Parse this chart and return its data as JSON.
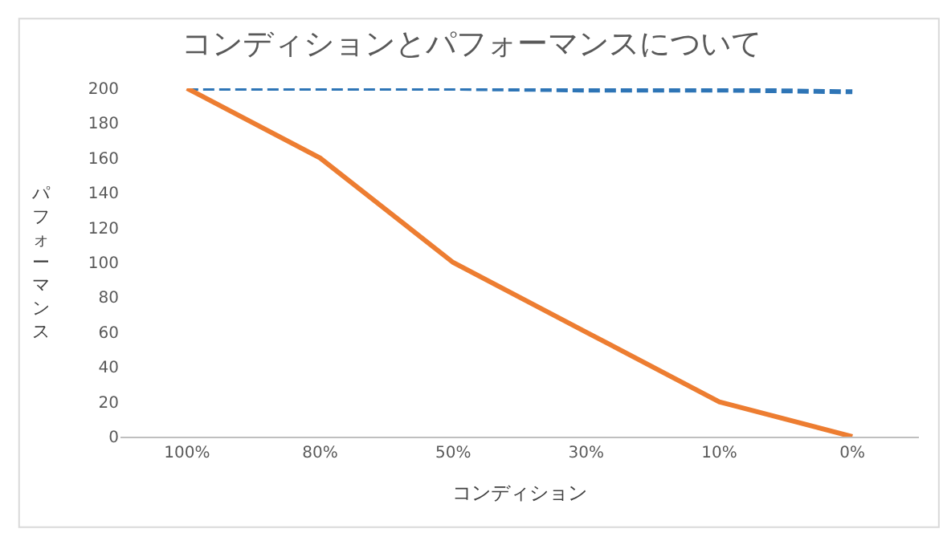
{
  "chart_data": {
    "type": "line",
    "title": "コンディションとパフォーマンスについて",
    "xlabel": "コンディション",
    "ylabel": "パフォーマンス",
    "categories": [
      "100%",
      "80%",
      "50%",
      "30%",
      "10%",
      "0%"
    ],
    "series": [
      {
        "color": "#2e75b6",
        "values": [
          200,
          200,
          200,
          199,
          199,
          198
        ],
        "line_style": "dashed"
      },
      {
        "color": "#ed7d31",
        "values": [
          200,
          160,
          100,
          60,
          20,
          0
        ],
        "line_style": "solid"
      }
    ],
    "ylim": [
      0,
      200
    ],
    "yticks": [
      0,
      20,
      40,
      60,
      80,
      100,
      120,
      140,
      160,
      180,
      200
    ],
    "legend": false,
    "marker": "none"
  }
}
